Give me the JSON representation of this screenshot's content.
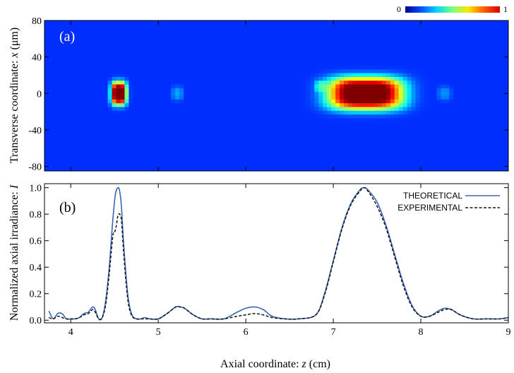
{
  "chart_data": [
    {
      "type": "heatmap",
      "panel_label": "(a)",
      "ylabel_prefix": "Transverse coordinate: ",
      "ylabel_var": "x",
      "ylabel_unit": " (μm)",
      "xlim": [
        3.7,
        9.0
      ],
      "ylim": [
        -85,
        80
      ],
      "yticks": [
        80,
        40,
        0,
        -40,
        -80
      ],
      "colorbar": {
        "min_label": "0",
        "max_label": "1",
        "colors": [
          "#00008f",
          "#0050ff",
          "#00d5ff",
          "#7dff7a",
          "#ffe500",
          "#ff5a00",
          "#d40000"
        ]
      },
      "hotspots": [
        {
          "z": 4.55,
          "x": 0,
          "sigma_z": 0.07,
          "sigma_x": 10,
          "peak": 1.0
        },
        {
          "z": 7.37,
          "x": 0,
          "sigma_z": 0.34,
          "sigma_x": 14,
          "peak": 1.0
        },
        {
          "z": 6.85,
          "x": 8,
          "sigma_z": 0.05,
          "sigma_x": 5,
          "peak": 0.15
        },
        {
          "z": 5.22,
          "x": 0,
          "sigma_z": 0.05,
          "sigma_x": 6,
          "peak": 0.12
        },
        {
          "z": 8.27,
          "x": 0,
          "sigma_z": 0.06,
          "sigma_x": 6,
          "peak": 0.1
        }
      ]
    },
    {
      "type": "line",
      "panel_label": "(b)",
      "xlabel_prefix": "Axial coordinate: ",
      "xlabel_var": "z",
      "xlabel_unit": " (cm)",
      "ylabel_prefix": "Normalized axial irradiance: ",
      "ylabel_var": "I",
      "xlim": [
        3.7,
        9.0
      ],
      "ylim": [
        -0.02,
        1.03
      ],
      "xticks": [
        4,
        5,
        6,
        7,
        8,
        9
      ],
      "yticks": [
        0.0,
        0.2,
        0.4,
        0.6,
        0.8,
        1.0
      ],
      "yticklabels": [
        "0.0",
        "0.2",
        "0.4",
        "0.6",
        "0.8",
        "1.0"
      ],
      "legend_position": "top-right",
      "series": [
        {
          "name": "THEORETICAL",
          "color": "#3a66b3",
          "style": "solid",
          "x": [
            3.75,
            3.8,
            3.85,
            3.9,
            3.95,
            4.0,
            4.05,
            4.1,
            4.15,
            4.2,
            4.25,
            4.28,
            4.32,
            4.36,
            4.4,
            4.44,
            4.48,
            4.51,
            4.54,
            4.56,
            4.58,
            4.6,
            4.63,
            4.66,
            4.7,
            4.75,
            4.8,
            4.85,
            4.9,
            5.0,
            5.1,
            5.2,
            5.25,
            5.3,
            5.4,
            5.5,
            5.6,
            5.75,
            5.9,
            6.0,
            6.1,
            6.2,
            6.3,
            6.45,
            6.6,
            6.8,
            6.9,
            7.0,
            7.1,
            7.2,
            7.3,
            7.35,
            7.4,
            7.5,
            7.6,
            7.7,
            7.8,
            7.9,
            8.0,
            8.1,
            8.2,
            8.27,
            8.35,
            8.45,
            8.6,
            8.75,
            8.9,
            9.0
          ],
          "y": [
            0.07,
            0.01,
            0.05,
            0.05,
            0.01,
            0.01,
            0.01,
            0.02,
            0.05,
            0.06,
            0.1,
            0.08,
            0.01,
            0.02,
            0.15,
            0.4,
            0.75,
            0.95,
            1.0,
            0.97,
            0.85,
            0.62,
            0.35,
            0.15,
            0.04,
            0.01,
            0.01,
            0.02,
            0.01,
            0.01,
            0.05,
            0.1,
            0.1,
            0.09,
            0.04,
            0.01,
            0.01,
            0.01,
            0.06,
            0.09,
            0.1,
            0.08,
            0.03,
            0.01,
            0.01,
            0.04,
            0.2,
            0.45,
            0.7,
            0.88,
            0.98,
            1.0,
            0.98,
            0.89,
            0.72,
            0.5,
            0.28,
            0.11,
            0.03,
            0.03,
            0.07,
            0.09,
            0.08,
            0.04,
            0.01,
            0.01,
            0.01,
            0.02
          ]
        },
        {
          "name": "EXPERIMENTAL",
          "color": "#111111",
          "style": "dashed",
          "x": [
            3.75,
            3.8,
            3.85,
            3.9,
            3.95,
            4.0,
            4.05,
            4.1,
            4.15,
            4.2,
            4.25,
            4.28,
            4.32,
            4.36,
            4.4,
            4.44,
            4.48,
            4.5,
            4.52,
            4.54,
            4.56,
            4.58,
            4.6,
            4.63,
            4.66,
            4.7,
            4.75,
            4.8,
            4.85,
            4.9,
            5.0,
            5.1,
            5.2,
            5.25,
            5.3,
            5.4,
            5.5,
            5.6,
            5.75,
            5.9,
            6.0,
            6.1,
            6.2,
            6.3,
            6.45,
            6.6,
            6.8,
            6.9,
            7.0,
            7.1,
            7.2,
            7.3,
            7.35,
            7.4,
            7.5,
            7.6,
            7.7,
            7.8,
            7.9,
            8.0,
            8.1,
            8.2,
            8.27,
            8.35,
            8.45,
            8.6,
            8.75,
            8.9,
            9.0
          ],
          "y": [
            0.02,
            0.01,
            0.03,
            0.02,
            0.01,
            0.01,
            0.01,
            0.02,
            0.04,
            0.05,
            0.08,
            0.06,
            0.01,
            0.02,
            0.12,
            0.35,
            0.63,
            0.66,
            0.71,
            0.79,
            0.8,
            0.75,
            0.55,
            0.3,
            0.12,
            0.03,
            0.01,
            0.01,
            0.01,
            0.01,
            0.01,
            0.05,
            0.1,
            0.1,
            0.09,
            0.04,
            0.01,
            0.01,
            0.01,
            0.03,
            0.04,
            0.05,
            0.04,
            0.02,
            0.01,
            0.01,
            0.04,
            0.19,
            0.44,
            0.69,
            0.87,
            0.97,
            1.0,
            0.97,
            0.86,
            0.7,
            0.48,
            0.26,
            0.1,
            0.03,
            0.03,
            0.06,
            0.08,
            0.08,
            0.04,
            0.01,
            0.01,
            0.01,
            0.02
          ]
        }
      ]
    }
  ]
}
